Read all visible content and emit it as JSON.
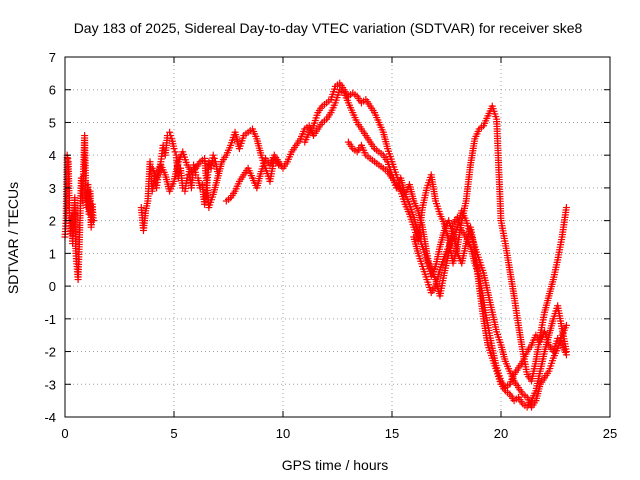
{
  "chart_data": {
    "type": "scatter",
    "title": "Day 183 of 2025, Sidereal Day-to-day VTEC variation (SDTVAR) for receiver ske8",
    "xlabel": "GPS time / hours",
    "ylabel": "SDTVAR / TECUs",
    "xlim": [
      0,
      25
    ],
    "ylim": [
      -4,
      7
    ],
    "xticks": [
      "0",
      "5",
      "10",
      "15",
      "20",
      "25"
    ],
    "yticks": [
      "-4",
      "-3",
      "-2",
      "-1",
      "0",
      "1",
      "2",
      "3",
      "4",
      "5",
      "6",
      "7"
    ],
    "grid": true,
    "marker": "+",
    "colors": {
      "points": "#ff0000",
      "axes": "#000000",
      "grid": "#a0a0a0"
    },
    "series": [
      {
        "values": [
          [
            0.0,
            1.5
          ],
          [
            0.05,
            2.0
          ],
          [
            0.1,
            4.0
          ],
          [
            0.15,
            3.8
          ],
          [
            0.2,
            2.4
          ],
          [
            0.25,
            1.6
          ],
          [
            0.3,
            2.1
          ],
          [
            0.35,
            1.3
          ],
          [
            0.4,
            1.9
          ],
          [
            0.45,
            2.7
          ],
          [
            0.5,
            1.0
          ],
          [
            0.55,
            0.6
          ],
          [
            0.6,
            0.2
          ],
          [
            0.65,
            1.2
          ],
          [
            0.7,
            2.3
          ],
          [
            0.75,
            3.3
          ],
          [
            0.8,
            2.6
          ],
          [
            0.85,
            3.5
          ],
          [
            0.9,
            4.6
          ],
          [
            0.95,
            3.0
          ],
          [
            1.0,
            2.4
          ],
          [
            1.05,
            3.1
          ],
          [
            1.1,
            2.2
          ],
          [
            1.15,
            2.9
          ],
          [
            1.2,
            1.8
          ],
          [
            1.25,
            2.5
          ],
          [
            1.3,
            2.0
          ]
        ]
      },
      {
        "values": [
          [
            3.5,
            2.4
          ],
          [
            3.6,
            1.7
          ],
          [
            3.7,
            2.3
          ],
          [
            3.8,
            2.6
          ],
          [
            3.9,
            3.8
          ],
          [
            4.0,
            2.9
          ],
          [
            4.1,
            3.3
          ],
          [
            4.2,
            3.0
          ],
          [
            4.3,
            3.5
          ],
          [
            4.4,
            3.8
          ],
          [
            4.5,
            4.3
          ],
          [
            4.6,
            4.0
          ],
          [
            4.7,
            4.6
          ],
          [
            4.8,
            4.7
          ],
          [
            4.9,
            4.5
          ],
          [
            5.0,
            4.2
          ],
          [
            5.1,
            4.0
          ],
          [
            5.2,
            3.3
          ],
          [
            5.3,
            3.6
          ],
          [
            5.4,
            3.0
          ],
          [
            5.5,
            2.9
          ],
          [
            5.6,
            3.3
          ],
          [
            5.7,
            3.5
          ],
          [
            5.8,
            3.0
          ],
          [
            5.9,
            3.7
          ],
          [
            6.0,
            3.4
          ],
          [
            6.1,
            3.3
          ],
          [
            6.2,
            3.0
          ],
          [
            6.3,
            3.1
          ],
          [
            6.4,
            2.5
          ],
          [
            6.5,
            3.0
          ],
          [
            6.6,
            3.8
          ],
          [
            6.7,
            3.6
          ],
          [
            6.8,
            4.0
          ],
          [
            6.9,
            3.8
          ],
          [
            7.0,
            3.5
          ]
        ]
      },
      {
        "values": [
          [
            4.0,
            3.6
          ],
          [
            4.2,
            3.3
          ],
          [
            4.4,
            3.7
          ],
          [
            4.6,
            3.4
          ],
          [
            4.8,
            2.9
          ],
          [
            5.0,
            3.2
          ],
          [
            5.2,
            3.8
          ],
          [
            5.4,
            4.1
          ],
          [
            5.6,
            3.7
          ],
          [
            5.8,
            3.5
          ],
          [
            6.0,
            3.6
          ],
          [
            6.2,
            3.8
          ],
          [
            6.4,
            3.9
          ],
          [
            6.6,
            2.4
          ],
          [
            6.8,
            2.8
          ],
          [
            7.0,
            3.3
          ],
          [
            7.2,
            3.8
          ],
          [
            7.4,
            4.0
          ],
          [
            7.6,
            4.3
          ],
          [
            7.8,
            4.7
          ],
          [
            8.0,
            4.2
          ],
          [
            8.2,
            4.6
          ],
          [
            8.4,
            4.7
          ],
          [
            8.6,
            4.8
          ],
          [
            8.8,
            4.5
          ],
          [
            9.0,
            4.0
          ],
          [
            9.2,
            3.6
          ],
          [
            9.4,
            3.2
          ],
          [
            9.6,
            3.9
          ],
          [
            9.8,
            3.7
          ]
        ]
      },
      {
        "values": [
          [
            7.4,
            2.6
          ],
          [
            7.6,
            2.7
          ],
          [
            7.8,
            2.9
          ],
          [
            8.0,
            3.2
          ],
          [
            8.2,
            3.4
          ],
          [
            8.4,
            3.6
          ],
          [
            8.6,
            3.3
          ],
          [
            8.8,
            3.0
          ],
          [
            9.0,
            3.5
          ],
          [
            9.2,
            3.9
          ],
          [
            9.4,
            3.7
          ],
          [
            9.6,
            4.0
          ],
          [
            9.8,
            3.8
          ],
          [
            10.0,
            3.6
          ],
          [
            10.2,
            3.8
          ],
          [
            10.4,
            4.1
          ],
          [
            10.6,
            4.3
          ],
          [
            10.8,
            4.5
          ],
          [
            11.0,
            4.8
          ],
          [
            11.2,
            4.9
          ],
          [
            11.4,
            4.6
          ],
          [
            11.6,
            4.8
          ],
          [
            11.8,
            5.0
          ],
          [
            12.0,
            5.1
          ],
          [
            12.2,
            5.3
          ],
          [
            12.4,
            5.6
          ],
          [
            12.6,
            6.0
          ],
          [
            12.8,
            5.9
          ],
          [
            13.0,
            5.6
          ],
          [
            13.2,
            5.3
          ],
          [
            13.4,
            5.0
          ],
          [
            13.6,
            4.8
          ],
          [
            13.8,
            4.6
          ],
          [
            14.0,
            4.4
          ],
          [
            14.2,
            4.2
          ],
          [
            14.4,
            4.1
          ],
          [
            14.6,
            4.0
          ],
          [
            14.8,
            3.8
          ],
          [
            15.0,
            3.4
          ],
          [
            15.2,
            3.0
          ],
          [
            15.4,
            3.3
          ],
          [
            15.6,
            2.8
          ],
          [
            15.8,
            3.1
          ],
          [
            16.0,
            2.6
          ],
          [
            16.2,
            2.3
          ],
          [
            16.4,
            1.8
          ],
          [
            16.6,
            1.0
          ],
          [
            16.8,
            0.3
          ],
          [
            17.0,
            0.6
          ],
          [
            17.2,
            1.2
          ],
          [
            17.4,
            1.7
          ],
          [
            17.6,
            2.0
          ],
          [
            17.8,
            1.6
          ],
          [
            18.0,
            1.0
          ],
          [
            18.2,
            0.7
          ],
          [
            18.4,
            1.3
          ],
          [
            18.6,
            1.8
          ],
          [
            18.8,
            1.1
          ],
          [
            19.0,
            0.0
          ],
          [
            19.2,
            -1.0
          ],
          [
            19.4,
            -1.8
          ],
          [
            19.6,
            -2.2
          ],
          [
            19.8,
            -2.6
          ],
          [
            20.0,
            -3.0
          ],
          [
            20.2,
            -3.2
          ],
          [
            20.4,
            -3.3
          ],
          [
            20.6,
            -3.5
          ],
          [
            20.8,
            -3.4
          ],
          [
            21.0,
            -3.6
          ],
          [
            21.2,
            -3.7
          ],
          [
            21.4,
            -3.5
          ],
          [
            21.6,
            -3.2
          ],
          [
            21.8,
            -2.6
          ],
          [
            22.0,
            -2.0
          ],
          [
            22.2,
            -1.5
          ],
          [
            22.4,
            -1.0
          ],
          [
            22.6,
            -0.6
          ],
          [
            22.8,
            -1.3
          ],
          [
            23.0,
            -2.0
          ]
        ]
      },
      {
        "values": [
          [
            11.0,
            4.4
          ],
          [
            11.2,
            4.7
          ],
          [
            11.4,
            4.9
          ],
          [
            11.6,
            5.3
          ],
          [
            11.8,
            5.5
          ],
          [
            12.0,
            5.6
          ],
          [
            12.2,
            5.7
          ],
          [
            12.4,
            6.1
          ],
          [
            12.6,
            6.2
          ],
          [
            12.8,
            6.0
          ],
          [
            13.0,
            5.8
          ],
          [
            13.2,
            5.9
          ],
          [
            13.4,
            5.8
          ],
          [
            13.6,
            5.6
          ],
          [
            13.8,
            5.7
          ],
          [
            14.0,
            5.5
          ],
          [
            14.2,
            5.3
          ],
          [
            14.4,
            5.0
          ],
          [
            14.6,
            4.7
          ],
          [
            14.8,
            4.2
          ],
          [
            15.0,
            3.8
          ],
          [
            15.2,
            3.4
          ],
          [
            15.4,
            3.0
          ],
          [
            15.6,
            2.8
          ],
          [
            15.8,
            2.5
          ],
          [
            16.0,
            2.1
          ],
          [
            16.2,
            1.6
          ],
          [
            16.4,
            1.2
          ],
          [
            16.6,
            0.8
          ],
          [
            16.8,
            0.5
          ],
          [
            17.0,
            0.2
          ],
          [
            17.2,
            -0.3
          ],
          [
            17.4,
            0.4
          ],
          [
            17.6,
            1.0
          ],
          [
            17.8,
            1.9
          ],
          [
            18.0,
            2.1
          ],
          [
            18.2,
            1.7
          ],
          [
            18.4,
            1.5
          ],
          [
            18.6,
            1.2
          ],
          [
            18.8,
            0.7
          ],
          [
            19.0,
            0.3
          ],
          [
            19.2,
            -0.5
          ],
          [
            19.4,
            -1.2
          ],
          [
            19.6,
            -1.9
          ],
          [
            19.8,
            -2.5
          ],
          [
            20.0,
            -2.9
          ],
          [
            20.2,
            -3.1
          ],
          [
            20.4,
            -3.0
          ],
          [
            20.6,
            -2.7
          ],
          [
            20.8,
            -2.5
          ],
          [
            21.0,
            -2.3
          ],
          [
            21.2,
            -2.0
          ],
          [
            21.4,
            -1.8
          ],
          [
            21.6,
            -1.5
          ],
          [
            21.8,
            -1.7
          ],
          [
            22.0,
            -1.4
          ],
          [
            22.2,
            -1.8
          ],
          [
            22.4,
            -2.0
          ],
          [
            22.6,
            -1.6
          ],
          [
            22.8,
            -1.8
          ],
          [
            23.0,
            -2.1
          ]
        ]
      },
      {
        "values": [
          [
            13.0,
            4.4
          ],
          [
            13.2,
            4.2
          ],
          [
            13.4,
            4.1
          ],
          [
            13.6,
            4.3
          ],
          [
            13.8,
            4.0
          ],
          [
            14.0,
            3.9
          ],
          [
            14.2,
            3.8
          ],
          [
            14.4,
            3.7
          ],
          [
            14.6,
            3.6
          ],
          [
            14.8,
            3.5
          ],
          [
            15.0,
            3.3
          ],
          [
            15.2,
            3.1
          ],
          [
            15.4,
            2.9
          ],
          [
            15.6,
            2.5
          ],
          [
            15.8,
            2.2
          ],
          [
            16.0,
            1.8
          ],
          [
            16.2,
            1.4
          ],
          [
            16.4,
            2.4
          ],
          [
            16.6,
            3.0
          ],
          [
            16.8,
            3.4
          ],
          [
            17.0,
            2.6
          ],
          [
            17.2,
            2.2
          ],
          [
            17.4,
            1.9
          ],
          [
            17.6,
            1.4
          ],
          [
            17.8,
            0.7
          ],
          [
            18.0,
            1.2
          ],
          [
            18.2,
            2.0
          ],
          [
            18.4,
            2.6
          ],
          [
            18.6,
            3.7
          ],
          [
            18.8,
            4.5
          ],
          [
            19.0,
            4.8
          ],
          [
            19.2,
            4.9
          ],
          [
            19.4,
            5.2
          ],
          [
            19.6,
            5.5
          ],
          [
            19.8,
            5.1
          ],
          [
            20.0,
            2.0
          ],
          [
            20.2,
            1.3
          ],
          [
            20.4,
            0.5
          ],
          [
            20.6,
            -0.3
          ],
          [
            20.8,
            -1.2
          ],
          [
            21.0,
            -2.0
          ],
          [
            21.2,
            -2.7
          ],
          [
            21.4,
            -2.9
          ],
          [
            21.6,
            -2.3
          ],
          [
            21.8,
            -1.5
          ],
          [
            22.0,
            -0.8
          ],
          [
            22.2,
            -0.3
          ],
          [
            22.4,
            0.2
          ],
          [
            22.6,
            0.8
          ],
          [
            22.8,
            1.5
          ],
          [
            23.0,
            2.4
          ]
        ]
      },
      {
        "values": [
          [
            16.0,
            1.5
          ],
          [
            16.2,
            1.0
          ],
          [
            16.4,
            0.6
          ],
          [
            16.6,
            0.2
          ],
          [
            16.8,
            -0.2
          ],
          [
            17.0,
            0.0
          ],
          [
            17.2,
            0.5
          ],
          [
            17.4,
            0.9
          ],
          [
            17.6,
            1.2
          ],
          [
            17.8,
            1.5
          ],
          [
            18.0,
            1.8
          ],
          [
            18.2,
            2.3
          ],
          [
            18.4,
            2.0
          ],
          [
            18.6,
            1.6
          ],
          [
            18.8,
            1.2
          ],
          [
            19.0,
            0.8
          ],
          [
            19.2,
            0.4
          ],
          [
            19.4,
            -0.2
          ],
          [
            19.6,
            -0.8
          ],
          [
            19.8,
            -1.4
          ],
          [
            20.0,
            -1.8
          ],
          [
            20.2,
            -2.3
          ],
          [
            20.4,
            -2.6
          ],
          [
            20.6,
            -2.9
          ],
          [
            20.8,
            -3.1
          ],
          [
            21.0,
            -3.3
          ],
          [
            21.2,
            -3.4
          ],
          [
            21.4,
            -3.7
          ],
          [
            21.6,
            -3.5
          ],
          [
            21.8,
            -3.0
          ],
          [
            22.0,
            -2.8
          ],
          [
            22.2,
            -2.6
          ],
          [
            22.4,
            -2.2
          ],
          [
            22.6,
            -1.9
          ],
          [
            22.8,
            -1.5
          ],
          [
            23.0,
            -1.2
          ]
        ]
      }
    ]
  }
}
